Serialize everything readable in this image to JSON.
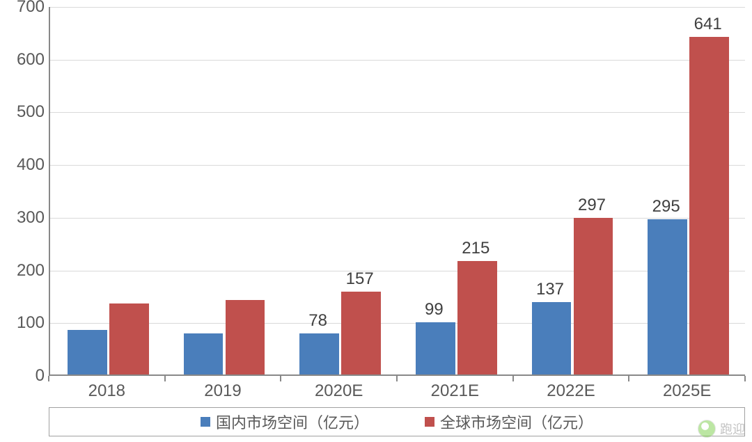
{
  "chart": {
    "type": "bar",
    "background_color": "#ffffff",
    "grid_color": "#d9d9d9",
    "axis_color": "#888888",
    "tick_label_color": "#595959",
    "bar_label_color": "#404040",
    "ylim": [
      0,
      700
    ],
    "ytick_step": 100,
    "yticks": [
      0,
      100,
      200,
      300,
      400,
      500,
      600,
      700
    ],
    "categories": [
      "2018",
      "2019",
      "2020E",
      "2021E",
      "2022E",
      "2025E"
    ],
    "series": [
      {
        "name": "国内市场空间（亿元）",
        "color": "#4a7ebb",
        "values": [
          84,
          78,
          78,
          99,
          137,
          295
        ],
        "show_labels": [
          false,
          false,
          true,
          true,
          true,
          true
        ]
      },
      {
        "name": "全球市场空间（亿元）",
        "color": "#c0504d",
        "values": [
          135,
          142,
          157,
          215,
          297,
          641
        ],
        "show_labels": [
          false,
          false,
          true,
          true,
          true,
          true
        ]
      }
    ],
    "bar_width_ratio": 0.34,
    "bar_gap_ratio": 0.02,
    "label_fontsize": 24,
    "tick_fontsize": 24,
    "legend_fontsize": 22
  },
  "watermark": {
    "text": "跑迎"
  }
}
